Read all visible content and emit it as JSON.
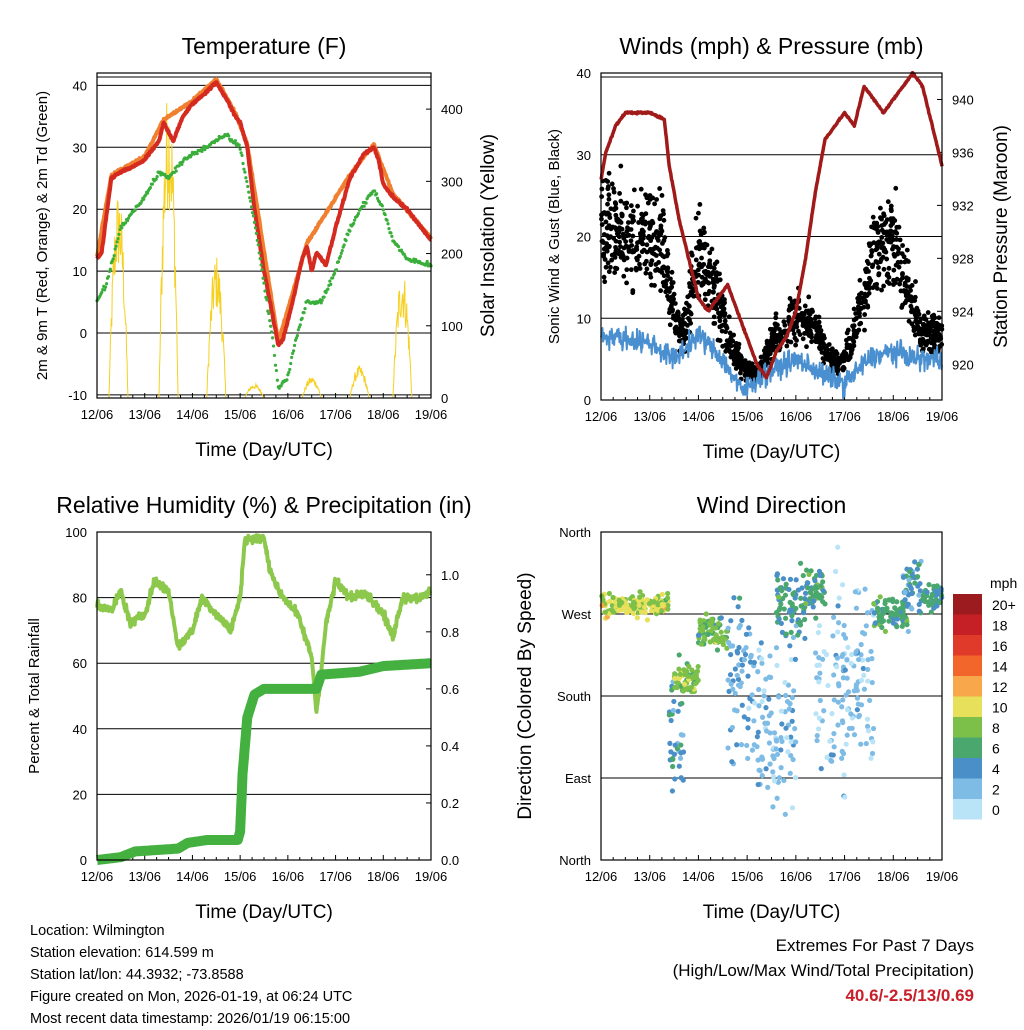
{
  "x_ticks": [
    "12/06",
    "13/06",
    "14/06",
    "15/06",
    "16/06",
    "17/06",
    "18/06",
    "19/06"
  ],
  "xlabel": "Time (Day/UTC)",
  "chart_data": [
    {
      "type": "line",
      "title": "Temperature (F)",
      "ylabel": "2m & 9m T (Red, Orange) & 2m Td (Green)",
      "y2label": "Solar Insolation (Yellow)",
      "xlim": [
        0,
        7
      ],
      "ylim": [
        -10.5,
        42
      ],
      "y_ticks": [
        "-10",
        "0",
        "10",
        "20",
        "30",
        "40"
      ],
      "y2lim": [
        0,
        450
      ],
      "y2_ticks": [
        "0",
        "100",
        "200",
        "300",
        "400"
      ],
      "series": [
        {
          "name": "2m T",
          "color": "#d42a20",
          "points": [
            [
              0,
              12
            ],
            [
              0.1,
              13
            ],
            [
              0.3,
              25
            ],
            [
              0.5,
              26
            ],
            [
              0.8,
              27
            ],
            [
              1.0,
              28
            ],
            [
              1.3,
              31
            ],
            [
              1.4,
              34
            ],
            [
              1.6,
              31
            ],
            [
              1.8,
              35
            ],
            [
              2.0,
              37
            ],
            [
              2.3,
              39
            ],
            [
              2.5,
              40.5
            ],
            [
              2.7,
              38
            ],
            [
              2.9,
              35
            ],
            [
              3.0,
              34
            ],
            [
              3.15,
              30
            ],
            [
              3.3,
              20
            ],
            [
              3.5,
              10
            ],
            [
              3.7,
              2
            ],
            [
              3.8,
              -2
            ],
            [
              3.9,
              -1
            ],
            [
              4.1,
              5
            ],
            [
              4.3,
              12
            ],
            [
              4.4,
              14
            ],
            [
              4.5,
              10
            ],
            [
              4.6,
              13
            ],
            [
              4.8,
              11
            ],
            [
              5.0,
              17
            ],
            [
              5.3,
              25
            ],
            [
              5.6,
              29
            ],
            [
              5.8,
              30
            ],
            [
              5.9,
              28
            ],
            [
              6.0,
              24
            ],
            [
              6.2,
              22
            ],
            [
              6.5,
              20
            ],
            [
              6.8,
              17
            ],
            [
              7.0,
              15
            ]
          ]
        },
        {
          "name": "9m T",
          "color": "#f08030",
          "points": [
            [
              0,
              12.3
            ],
            [
              0.3,
              25.5
            ],
            [
              1.0,
              28.5
            ],
            [
              1.4,
              34.5
            ],
            [
              2.0,
              37.5
            ],
            [
              2.5,
              41
            ],
            [
              2.9,
              35.5
            ],
            [
              3.15,
              30.5
            ],
            [
              3.8,
              -1.5
            ],
            [
              4.4,
              14.5
            ],
            [
              5.3,
              25.5
            ],
            [
              5.8,
              30.5
            ],
            [
              6.2,
              22.5
            ],
            [
              7.0,
              15.3
            ]
          ]
        },
        {
          "name": "2m Td",
          "color": "#3aae3a",
          "points": [
            [
              0,
              5
            ],
            [
              0.2,
              8
            ],
            [
              0.5,
              17
            ],
            [
              0.8,
              20
            ],
            [
              1.0,
              22
            ],
            [
              1.3,
              26
            ],
            [
              1.5,
              25
            ],
            [
              1.7,
              27
            ],
            [
              2.0,
              29
            ],
            [
              2.3,
              30
            ],
            [
              2.7,
              32
            ],
            [
              3.0,
              30
            ],
            [
              3.3,
              18
            ],
            [
              3.5,
              8
            ],
            [
              3.7,
              -2
            ],
            [
              3.8,
              -9
            ],
            [
              4.0,
              -7
            ],
            [
              4.2,
              0
            ],
            [
              4.4,
              5
            ],
            [
              4.7,
              5
            ],
            [
              5.0,
              10
            ],
            [
              5.3,
              17
            ],
            [
              5.6,
              21
            ],
            [
              5.8,
              23
            ],
            [
              6.0,
              20
            ],
            [
              6.2,
              15
            ],
            [
              6.5,
              12
            ],
            [
              7.0,
              11
            ]
          ]
        },
        {
          "name": "Solar Insolation",
          "color": "#f5d020",
          "peaks": [
            [
              0.45,
              290
            ],
            [
              1.5,
              435
            ],
            [
              2.5,
              200
            ],
            [
              3.3,
              20
            ],
            [
              4.5,
              30
            ],
            [
              5.5,
              45
            ],
            [
              6.4,
              180
            ]
          ]
        }
      ]
    },
    {
      "type": "scatter",
      "title": "Winds (mph) & Pressure (mb)",
      "ylabel": "Sonic Wind & Gust (Blue, Black)",
      "y2label": "Station Pressure (Maroon)",
      "xlim": [
        0,
        7
      ],
      "ylim": [
        0,
        40
      ],
      "y_ticks": [
        "0",
        "10",
        "20",
        "30",
        "40"
      ],
      "y2lim": [
        917.3,
        942
      ],
      "y2_ticks": [
        "920",
        "924",
        "928",
        "932",
        "936",
        "940"
      ],
      "series": [
        {
          "name": "Gust",
          "color": "#000000",
          "mean": [
            [
              0,
              22
            ],
            [
              0.5,
              20
            ],
            [
              1,
              20
            ],
            [
              1.3,
              18
            ],
            [
              1.5,
              10
            ],
            [
              1.7,
              8
            ],
            [
              2.0,
              18
            ],
            [
              2.3,
              15
            ],
            [
              2.6,
              8
            ],
            [
              2.9,
              4
            ],
            [
              3.2,
              3
            ],
            [
              3.6,
              8
            ],
            [
              4.0,
              10
            ],
            [
              4.3,
              10
            ],
            [
              4.6,
              6
            ],
            [
              4.9,
              4
            ],
            [
              5.2,
              8
            ],
            [
              5.6,
              18
            ],
            [
              6.0,
              20
            ],
            [
              6.3,
              14
            ],
            [
              6.6,
              8
            ],
            [
              7.0,
              8
            ]
          ]
        },
        {
          "name": "Wind",
          "color": "#4a90d0",
          "mean": [
            [
              0,
              8
            ],
            [
              1,
              7
            ],
            [
              1.5,
              5
            ],
            [
              2,
              8
            ],
            [
              2.5,
              5
            ],
            [
              2.9,
              1
            ],
            [
              3.3,
              3
            ],
            [
              4,
              5
            ],
            [
              4.6,
              3
            ],
            [
              5.0,
              2
            ],
            [
              5.5,
              5
            ],
            [
              6,
              6
            ],
            [
              6.5,
              5
            ],
            [
              7,
              5
            ]
          ]
        },
        {
          "name": "Pressure",
          "color": "#a01a1a",
          "points": [
            [
              0,
              934
            ],
            [
              0.1,
              936
            ],
            [
              0.3,
              938
            ],
            [
              0.5,
              939
            ],
            [
              1.0,
              939
            ],
            [
              1.3,
              938.5
            ],
            [
              1.4,
              935
            ],
            [
              1.6,
              931
            ],
            [
              1.8,
              928
            ],
            [
              2.0,
              925
            ],
            [
              2.2,
              924
            ],
            [
              2.4,
              925
            ],
            [
              2.6,
              926
            ],
            [
              2.8,
              924
            ],
            [
              3.0,
              922
            ],
            [
              3.2,
              920
            ],
            [
              3.4,
              919
            ],
            [
              3.6,
              921
            ],
            [
              3.8,
              922
            ],
            [
              4.0,
              924
            ],
            [
              4.2,
              928
            ],
            [
              4.4,
              933
            ],
            [
              4.6,
              937
            ],
            [
              4.8,
              938
            ],
            [
              5.0,
              939
            ],
            [
              5.2,
              938
            ],
            [
              5.4,
              941
            ],
            [
              5.6,
              940
            ],
            [
              5.8,
              939
            ],
            [
              6.0,
              940
            ],
            [
              6.2,
              941
            ],
            [
              6.4,
              942
            ],
            [
              6.6,
              941
            ],
            [
              6.8,
              938
            ],
            [
              7.0,
              935
            ]
          ]
        }
      ]
    },
    {
      "type": "line",
      "title": "Relative Humidity (%) & Precipitation (in)",
      "ylabel": "Percent & Total Rainfall",
      "xlim": [
        0,
        7
      ],
      "ylim": [
        0,
        100
      ],
      "y_ticks": [
        "0",
        "20",
        "40",
        "60",
        "80",
        "100"
      ],
      "y2lim": [
        0,
        1.15
      ],
      "y2_ticks": [
        "0.0",
        "0.2",
        "0.4",
        "0.6",
        "0.8",
        "1.0"
      ],
      "series": [
        {
          "name": "Relative Humidity",
          "color": "#8cc84b",
          "points": [
            [
              0,
              78
            ],
            [
              0.3,
              76
            ],
            [
              0.5,
              82
            ],
            [
              0.7,
              72
            ],
            [
              1,
              75
            ],
            [
              1.2,
              85
            ],
            [
              1.5,
              82
            ],
            [
              1.7,
              65
            ],
            [
              2,
              70
            ],
            [
              2.2,
              80
            ],
            [
              2.5,
              75
            ],
            [
              2.8,
              70
            ],
            [
              3.0,
              80
            ],
            [
              3.1,
              98
            ],
            [
              3.5,
              98
            ],
            [
              3.6,
              90
            ],
            [
              3.8,
              82
            ],
            [
              4.2,
              75
            ],
            [
              4.5,
              62
            ],
            [
              4.6,
              45
            ],
            [
              4.7,
              58
            ],
            [
              4.8,
              72
            ],
            [
              5.0,
              85
            ],
            [
              5.3,
              80
            ],
            [
              5.6,
              82
            ],
            [
              6.0,
              75
            ],
            [
              6.2,
              68
            ],
            [
              6.4,
              80
            ],
            [
              6.8,
              80
            ],
            [
              7,
              82
            ]
          ]
        },
        {
          "name": "Total Precipitation",
          "color": "#44b040",
          "points": [
            [
              0,
              0
            ],
            [
              0.5,
              0.01
            ],
            [
              0.8,
              0.03
            ],
            [
              1.7,
              0.04
            ],
            [
              1.9,
              0.06
            ],
            [
              2.3,
              0.07
            ],
            [
              2.95,
              0.07
            ],
            [
              3.0,
              0.1
            ],
            [
              3.05,
              0.3
            ],
            [
              3.15,
              0.5
            ],
            [
              3.3,
              0.58
            ],
            [
              3.5,
              0.6
            ],
            [
              4.6,
              0.6
            ],
            [
              4.7,
              0.65
            ],
            [
              5.5,
              0.66
            ],
            [
              6,
              0.68
            ],
            [
              7,
              0.69
            ]
          ]
        }
      ]
    },
    {
      "type": "scatter",
      "title": "Wind Direction",
      "ylabel": "Direction (Colored By Speed)",
      "xlim": [
        0,
        7
      ],
      "ylim": [
        0,
        360
      ],
      "y_ticks": [
        "North",
        "East",
        "South",
        "West",
        "North"
      ],
      "legend": {
        "title": "mph",
        "placement": "right",
        "entries": [
          {
            "label": "20+",
            "color": "#9b1b1e"
          },
          {
            "label": "18",
            "color": "#c42026"
          },
          {
            "label": "16",
            "color": "#e03a2a"
          },
          {
            "label": "14",
            "color": "#f2652b"
          },
          {
            "label": "12",
            "color": "#f8a84a"
          },
          {
            "label": "10",
            "color": "#e6e05a"
          },
          {
            "label": "8",
            "color": "#7cc04a"
          },
          {
            "label": "6",
            "color": "#4aa86e"
          },
          {
            "label": "4",
            "color": "#4a8fc8"
          },
          {
            "label": "2",
            "color": "#7ebce6"
          },
          {
            "label": "0",
            "color": "#b9e3f7"
          }
        ]
      },
      "clusters": [
        [
          0,
          1.4,
          280,
          18,
          9
        ],
        [
          1.4,
          1.7,
          140,
          110,
          4
        ],
        [
          1.5,
          2.0,
          200,
          25,
          8
        ],
        [
          2.0,
          2.6,
          250,
          25,
          7
        ],
        [
          2.6,
          3.1,
          200,
          140,
          3
        ],
        [
          3.1,
          4.0,
          150,
          150,
          2
        ],
        [
          3.6,
          4.2,
          280,
          60,
          5
        ],
        [
          4.2,
          4.6,
          300,
          40,
          6
        ],
        [
          4.4,
          5.6,
          200,
          160,
          1.5
        ],
        [
          5.6,
          6.3,
          270,
          25,
          6
        ],
        [
          6.2,
          6.6,
          300,
          60,
          4
        ],
        [
          6.6,
          7.0,
          290,
          20,
          5
        ]
      ]
    }
  ],
  "info": {
    "location": "Location: Wilmington",
    "elevation": "Station elevation: 614.599 m",
    "latlon": "Station lat/lon: 44.3932; -73.8588",
    "created": "Figure created on Mon, 2026-01-19, at 06:24 UTC",
    "recent": "Most recent data timestamp: 2026/01/19 06:15:00"
  },
  "extremes": {
    "title": "Extremes For Past 7 Days",
    "subtitle": "(High/Low/Max Wind/Total Precipitation)",
    "values": "40.6/-2.5/13/0.69"
  }
}
